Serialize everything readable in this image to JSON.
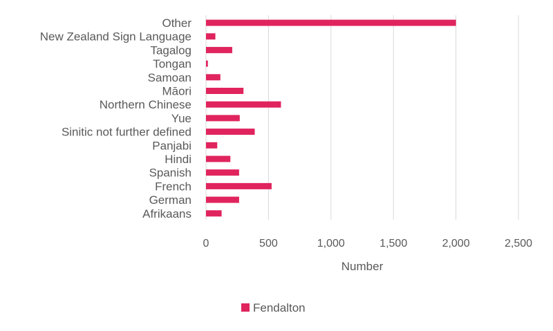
{
  "chart_data": {
    "type": "bar",
    "orientation": "horizontal",
    "categories": [
      "Other",
      "New Zealand Sign Language",
      "Tagalog",
      "Tongan",
      "Samoan",
      "Māori",
      "Northern Chinese",
      "Yue",
      "Sinitic not further defined",
      "Panjabi",
      "Hindi",
      "Spanish",
      "French",
      "German",
      "Afrikaans"
    ],
    "series": [
      {
        "name": "Fendalton",
        "color": "#e0245e",
        "values": [
          2000,
          75,
          210,
          15,
          115,
          300,
          600,
          270,
          390,
          90,
          195,
          265,
          525,
          265,
          125
        ]
      }
    ],
    "xlabel": "Number",
    "ylabel": "",
    "xlim": [
      0,
      2500
    ],
    "xticks": [
      0,
      500,
      1000,
      1500,
      2000,
      2500
    ],
    "xtick_labels": [
      "0",
      "500",
      "1,000",
      "1,500",
      "2,000",
      "2,500"
    ],
    "grid": true,
    "legend_position": "bottom"
  }
}
